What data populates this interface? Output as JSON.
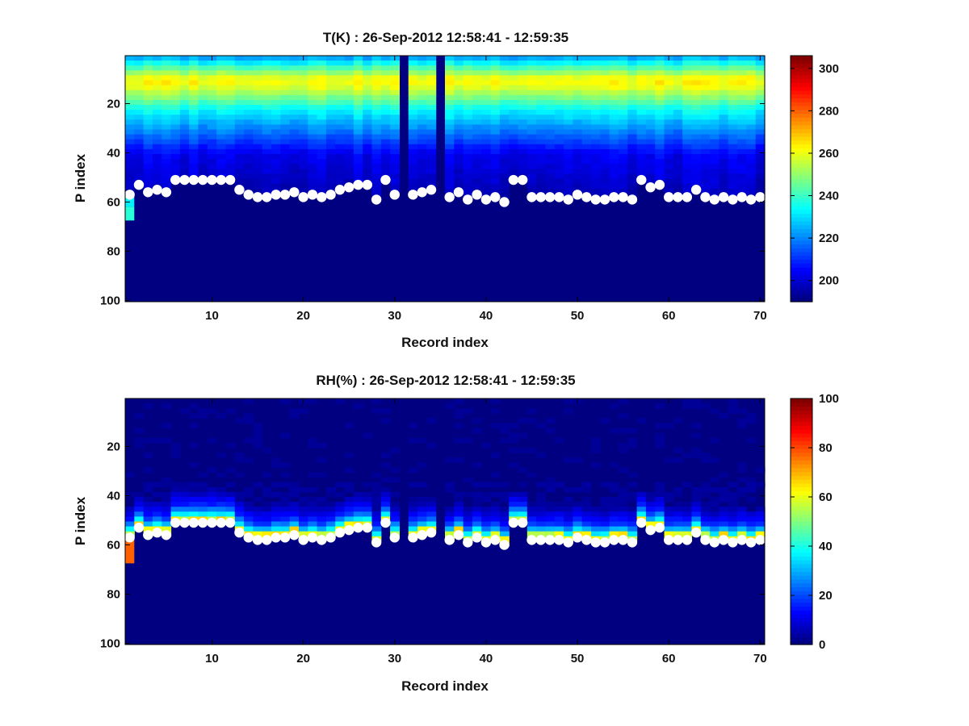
{
  "chart_data": [
    {
      "type": "heatmap",
      "title": "T(K) : 26-Sep-2012 12:58:41 - 12:59:35",
      "xlabel": "Record index",
      "ylabel": "P index",
      "xlim": [
        0.5,
        70.5
      ],
      "ylim": [
        0.5,
        100.5
      ],
      "y_reversed": true,
      "x_ticks": [
        10,
        20,
        30,
        40,
        50,
        60,
        70
      ],
      "y_ticks": [
        20,
        40,
        60,
        80,
        100
      ],
      "colormap": "jet",
      "clim": [
        190,
        306
      ],
      "colorbar_ticks": [
        200,
        220,
        240,
        260,
        280,
        300
      ],
      "no_data_columns": [
        31,
        35
      ],
      "surface_marker_color": "#ffffff",
      "surface_level_p_index": [
        57,
        53,
        56,
        55,
        56,
        51,
        51,
        51,
        51,
        51,
        51,
        51,
        55,
        57,
        58,
        58,
        57,
        57,
        56,
        58,
        57,
        58,
        57,
        55,
        54,
        53,
        53,
        59,
        51,
        57,
        null,
        57,
        56,
        55,
        null,
        58,
        56,
        59,
        57,
        59,
        58,
        60,
        51,
        51,
        58,
        58,
        58,
        58,
        59,
        57,
        58,
        59,
        59,
        58,
        58,
        59,
        51,
        54,
        53,
        58,
        58,
        58,
        55,
        58,
        59,
        58,
        59,
        58,
        59,
        58
      ],
      "profile_note": "Temperature peaks (~262 K) near P index 9-12, decreasing to ~200 K near P index 40-50; values below the surface level are at the colormap minimum."
    },
    {
      "type": "heatmap",
      "title": "RH(%) : 26-Sep-2012 12:58:41 - 12:59:35",
      "xlabel": "Record index",
      "ylabel": "P index",
      "xlim": [
        0.5,
        70.5
      ],
      "ylim": [
        0.5,
        100.5
      ],
      "y_reversed": true,
      "x_ticks": [
        10,
        20,
        30,
        40,
        50,
        60,
        70
      ],
      "y_ticks": [
        20,
        40,
        60,
        80,
        100
      ],
      "colormap": "jet",
      "clim": [
        0,
        100
      ],
      "colorbar_ticks": [
        0,
        20,
        40,
        60,
        80,
        100
      ],
      "no_data_columns": [
        31,
        35
      ],
      "surface_marker_color": "#ffffff",
      "surface_level_p_index": [
        57,
        53,
        56,
        55,
        56,
        51,
        51,
        51,
        51,
        51,
        51,
        51,
        55,
        57,
        58,
        58,
        57,
        57,
        56,
        58,
        57,
        58,
        57,
        55,
        54,
        53,
        53,
        59,
        51,
        57,
        null,
        57,
        56,
        55,
        null,
        58,
        56,
        59,
        57,
        59,
        58,
        60,
        51,
        51,
        58,
        58,
        58,
        58,
        59,
        57,
        58,
        59,
        59,
        58,
        58,
        59,
        51,
        54,
        53,
        58,
        58,
        58,
        55,
        58,
        59,
        58,
        59,
        58,
        59,
        58
      ],
      "profile_note": "RH near 0% above P index 35, rising to ~55-65% just above the surface level; values below the surface level are 0."
    }
  ]
}
